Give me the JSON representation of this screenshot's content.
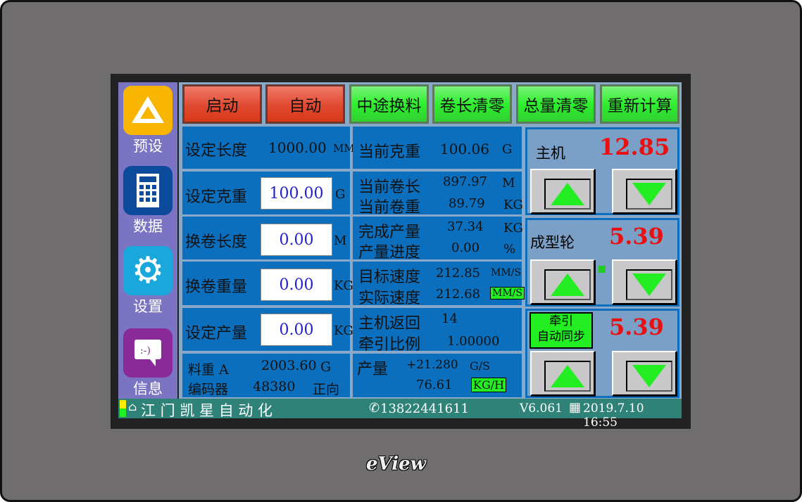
{
  "sidebar": {
    "items": [
      {
        "label": "预设",
        "icon": "drive-icon",
        "color": "#f7b500"
      },
      {
        "label": "数据",
        "icon": "calculator-icon",
        "color": "#0c4a9c"
      },
      {
        "label": "设置",
        "icon": "gear-icon",
        "color": "#1aa8dc"
      },
      {
        "label": "信息",
        "icon": "chat-icon",
        "color": "#8a2a9a"
      }
    ]
  },
  "toolbar": {
    "buttons": [
      "启动",
      "自动",
      "中途换料",
      "卷长清零",
      "总量清零",
      "重新计算"
    ]
  },
  "left": {
    "set_length": {
      "label": "设定长度",
      "value": "1000.00",
      "unit": "MM"
    },
    "set_gram": {
      "label": "设定克重",
      "value": "100.00",
      "unit": "G"
    },
    "change_length": {
      "label": "换卷长度",
      "value": "0.00",
      "unit": "M"
    },
    "change_weight": {
      "label": "换卷重量",
      "value": "0.00",
      "unit": "KG"
    },
    "set_output": {
      "label": "设定产量",
      "value": "0.00",
      "unit": "KG"
    },
    "material": {
      "label": "料重 A",
      "value": "2003.60",
      "unit": "G"
    },
    "encoder": {
      "label": "编码器",
      "value": "48380",
      "dir": "正向"
    }
  },
  "middle": {
    "cur_gram": {
      "label": "当前克重",
      "value": "100.06",
      "unit": "G"
    },
    "cur_len": {
      "label": "当前卷长",
      "value": "897.97",
      "unit": "M"
    },
    "cur_wt": {
      "label": "当前卷重",
      "value": "89.79",
      "unit": "KG"
    },
    "done": {
      "label": "完成产量",
      "value": "37.34",
      "unit": "KG"
    },
    "progress": {
      "label": "产量进度",
      "value": "0.00",
      "unit": "%"
    },
    "target_speed": {
      "label": "目标速度",
      "value": "212.85",
      "unit": "MM/S"
    },
    "actual_speed": {
      "label": "实际速度",
      "value": "212.68",
      "unit": "MM/S"
    },
    "host_return": {
      "label": "主机返回",
      "value": "14"
    },
    "ratio": {
      "label": "牵引比例",
      "value": "1.00000"
    },
    "output": {
      "label": "产量",
      "value": "+21.280",
      "unit": "G/S",
      "value2": "76.61",
      "unit2": "KG/H"
    }
  },
  "right": {
    "main": {
      "label": "主机",
      "value": "12.85"
    },
    "forming": {
      "label": "成型轮",
      "value": "5.39"
    },
    "traction": {
      "label1": "牵引",
      "label2": "自动同步",
      "value": "5.39"
    }
  },
  "status": {
    "company": "江 门 凯 星 自 动 化",
    "phone": "13822441611",
    "version": "V6.061",
    "datetime": "2019.7.10 16:55"
  },
  "brand": "eView"
}
